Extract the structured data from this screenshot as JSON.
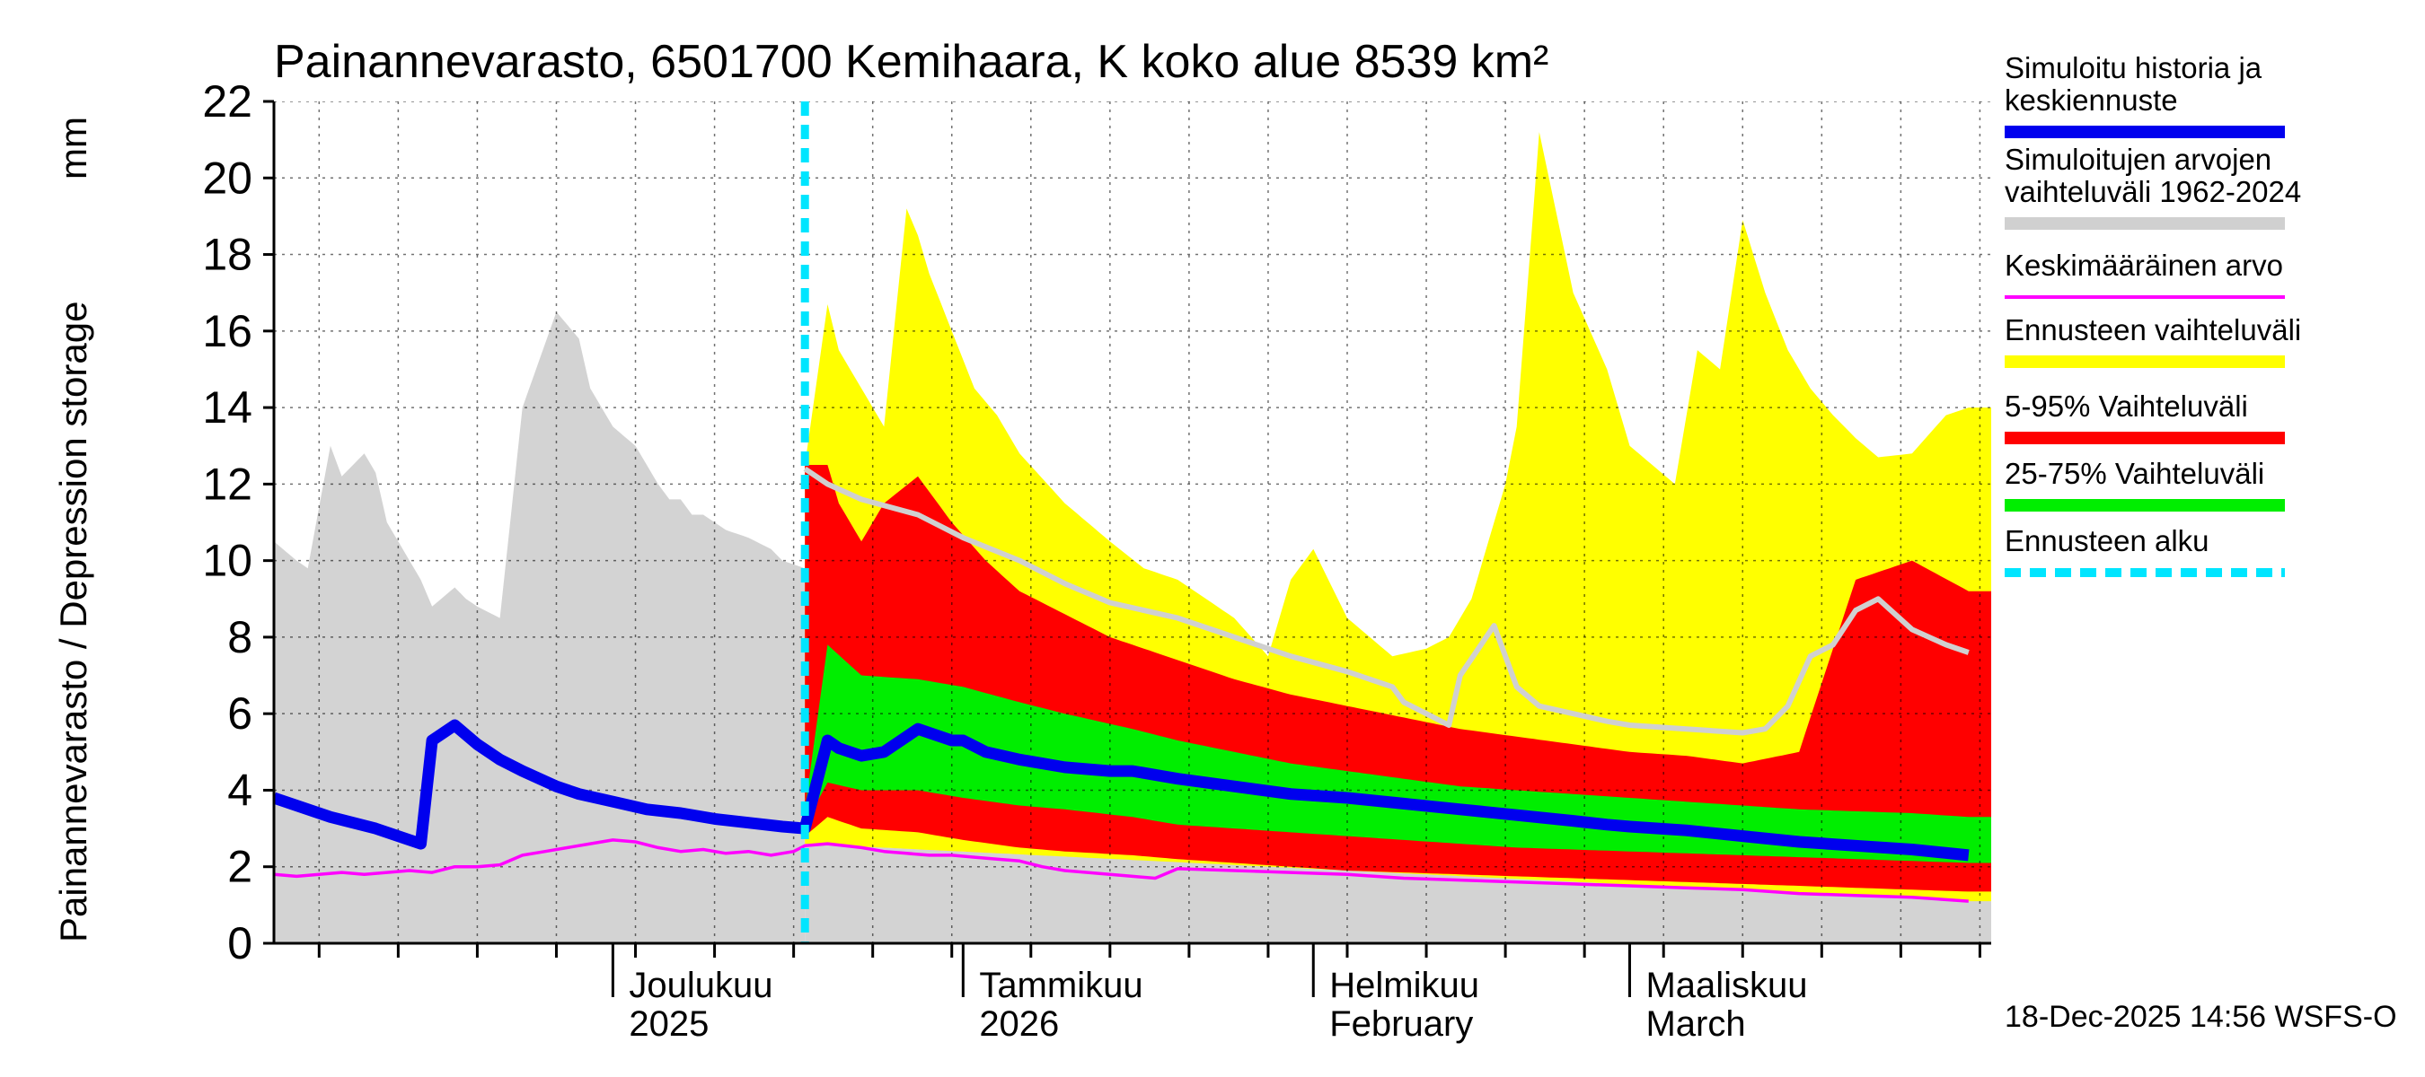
{
  "chart_data": {
    "type": "area",
    "title": "Painannevarasto, 6501700 Kemihaara, K koko alue 8539 km²",
    "ylabel": "Painannevarasto / Depression storage",
    "yunit": "mm",
    "ylim": [
      0,
      22
    ],
    "yticks": [
      0,
      2,
      4,
      6,
      8,
      10,
      12,
      14,
      16,
      18,
      20,
      22
    ],
    "x_start": "2025-11-01",
    "x_end": "2026-03-31",
    "forecast_start_day": 47,
    "footer": "18-Dec-2025 14:56 WSFS-O",
    "month_labels": [
      {
        "day": 30,
        "line1": "Joulukuu",
        "line2": "2025"
      },
      {
        "day": 61,
        "line1": "Tammikuu",
        "line2": "2026"
      },
      {
        "day": 92,
        "line1": "Helmikuu",
        "line2": "February"
      },
      {
        "day": 120,
        "line1": "Maaliskuu",
        "line2": "March"
      }
    ],
    "month_boundaries": [
      30,
      61,
      92,
      120
    ],
    "legend": [
      {
        "label_lines": [
          "Simuloitu historia ja",
          "keskiennuste"
        ],
        "color": "#0000ee",
        "style": "thick"
      },
      {
        "label_lines": [
          "Simuloitujen arvojen",
          "vaihteluväli 1962-2024"
        ],
        "color": "#d0d0d0",
        "style": "thick"
      },
      {
        "label_lines": [
          "Keskimääräinen arvo"
        ],
        "color": "#ff00ff",
        "style": "thin"
      },
      {
        "label_lines": [
          "Ennusteen vaihteluväli"
        ],
        "color": "#ffff00",
        "style": "thick"
      },
      {
        "label_lines": [
          "5-95% Vaihteluväli"
        ],
        "color": "#ff0000",
        "style": "thick"
      },
      {
        "label_lines": [
          "25-75% Vaihteluväli"
        ],
        "color": "#00ee00",
        "style": "thick"
      },
      {
        "label_lines": [
          "Ennusteen alku"
        ],
        "color": "#00e5ff",
        "style": "dashed"
      }
    ],
    "series": {
      "hist_range_upper": {
        "x": [
          0,
          2,
          3,
          5,
          6,
          8,
          9,
          10,
          11,
          12,
          13,
          14,
          16,
          17,
          18,
          20,
          22,
          25,
          27,
          28,
          30,
          32,
          33,
          34,
          35,
          36,
          37,
          38,
          40,
          42,
          44,
          45,
          46,
          47
        ],
        "y": [
          10.5,
          10,
          9.8,
          13,
          12.2,
          12.8,
          12.3,
          11,
          10.5,
          10,
          9.5,
          8.8,
          9.3,
          9,
          8.8,
          8.5,
          14,
          16.5,
          15.8,
          14.5,
          13.5,
          13,
          12.5,
          12,
          11.6,
          11.6,
          11.2,
          11.2,
          10.8,
          10.6,
          10.3,
          10,
          9.9,
          9.8
        ]
      },
      "hist_range_lower": {
        "x": [
          0,
          47
        ],
        "y": [
          0,
          0
        ]
      },
      "hist_mean_sim": {
        "x": [
          0,
          2,
          3,
          5,
          6,
          8,
          9,
          10,
          11,
          12,
          13,
          14,
          16,
          17,
          18,
          20,
          22,
          25,
          27,
          28,
          30,
          32,
          34,
          35,
          36,
          37,
          38,
          40,
          42,
          44,
          45,
          46,
          47
        ],
        "y": [
          10.5,
          10,
          9.8,
          13,
          12.2,
          12.8,
          12.3,
          11,
          10.5,
          10,
          9.5,
          8.8,
          9.3,
          9,
          8.8,
          8.5,
          14,
          16.5,
          15.8,
          14.5,
          13.5,
          13,
          12.6,
          12.4,
          12.2,
          11.9,
          11.6,
          11.4,
          11.2,
          11,
          10.7,
          10.4,
          10.2
        ]
      },
      "forecast_mean": {
        "x": [
          0,
          5,
          9,
          12,
          13,
          14,
          16,
          18,
          20,
          22,
          25,
          27,
          30,
          33,
          36,
          39,
          42,
          45,
          47,
          49,
          50,
          52,
          54,
          57,
          60,
          61,
          63,
          66,
          70,
          74,
          76,
          80,
          85,
          90,
          95,
          100,
          105,
          110,
          115,
          118,
          120,
          125,
          130,
          135,
          140,
          145,
          150
        ],
        "y": [
          3.8,
          3.3,
          3.0,
          2.7,
          2.6,
          5.3,
          5.7,
          5.2,
          4.8,
          4.5,
          4.1,
          3.9,
          3.7,
          3.5,
          3.4,
          3.25,
          3.15,
          3.05,
          3.0,
          5.3,
          5.1,
          4.9,
          5.0,
          5.6,
          5.3,
          5.3,
          5.0,
          4.8,
          4.6,
          4.5,
          4.5,
          4.3,
          4.1,
          3.9,
          3.8,
          3.65,
          3.5,
          3.35,
          3.2,
          3.1,
          3.05,
          2.95,
          2.8,
          2.65,
          2.55,
          2.45,
          2.3
        ]
      },
      "forecast_full_upper": {
        "x": [
          47,
          49,
          50,
          52,
          54,
          56,
          57,
          58,
          60,
          62,
          64,
          66,
          70,
          74,
          77,
          80,
          85,
          88,
          90,
          92,
          95,
          99,
          102,
          104,
          106,
          108,
          109,
          110,
          112,
          115,
          118,
          120,
          122,
          124,
          126,
          128,
          130,
          132,
          134,
          136,
          138,
          140,
          142,
          145,
          148,
          150
        ],
        "y": [
          12.5,
          16.7,
          15.5,
          14.5,
          13.5,
          19.2,
          18.5,
          17.5,
          16,
          14.5,
          13.8,
          12.8,
          11.5,
          10.5,
          9.8,
          9.5,
          8.5,
          7.5,
          9.5,
          10.3,
          8.5,
          7.5,
          7.7,
          8,
          9,
          11,
          12,
          13.5,
          21.2,
          17,
          15,
          13,
          12.5,
          12,
          15.5,
          15,
          18.9,
          17,
          15.5,
          14.5,
          13.8,
          13.2,
          12.7,
          12.8,
          13.8,
          14
        ]
      },
      "forecast_p95": {
        "x": [
          47,
          49,
          50,
          52,
          54,
          57,
          60,
          63,
          66,
          70,
          74,
          76,
          80,
          85,
          90,
          95,
          100,
          105,
          110,
          115,
          120,
          125,
          130,
          135,
          140,
          145,
          150
        ],
        "y": [
          12.5,
          12.5,
          11.5,
          10.5,
          11.5,
          12.2,
          11,
          10,
          9.2,
          8.6,
          8,
          7.8,
          7.4,
          6.9,
          6.5,
          6.2,
          5.9,
          5.6,
          5.4,
          5.2,
          5,
          4.9,
          4.7,
          5.0,
          9.5,
          10,
          9.2
        ]
      },
      "forecast_p75": {
        "x": [
          47,
          49,
          52,
          57,
          61,
          66,
          70,
          76,
          80,
          85,
          90,
          95,
          100,
          105,
          110,
          115,
          120,
          125,
          130,
          135,
          140,
          145,
          150
        ],
        "y": [
          3.5,
          7.8,
          7.0,
          6.9,
          6.7,
          6.3,
          6.0,
          5.6,
          5.3,
          5.0,
          4.7,
          4.5,
          4.3,
          4.1,
          4.0,
          3.9,
          3.8,
          3.7,
          3.6,
          3.5,
          3.45,
          3.4,
          3.3
        ]
      },
      "forecast_p25": {
        "x": [
          47,
          49,
          52,
          57,
          61,
          66,
          70,
          76,
          80,
          85,
          90,
          95,
          100,
          105,
          110,
          115,
          120,
          125,
          130,
          135,
          140,
          145,
          150
        ],
        "y": [
          3.1,
          4.2,
          4.0,
          4.0,
          3.8,
          3.6,
          3.5,
          3.3,
          3.1,
          3.0,
          2.9,
          2.8,
          2.7,
          2.6,
          2.5,
          2.45,
          2.4,
          2.35,
          2.3,
          2.25,
          2.2,
          2.15,
          2.1
        ]
      },
      "forecast_p5": {
        "x": [
          47,
          49,
          52,
          57,
          61,
          66,
          70,
          76,
          80,
          85,
          90,
          95,
          100,
          105,
          110,
          115,
          120,
          125,
          130,
          135,
          140,
          145,
          150
        ],
        "y": [
          2.8,
          3.3,
          3.0,
          2.9,
          2.7,
          2.5,
          2.4,
          2.3,
          2.2,
          2.1,
          2.0,
          1.9,
          1.85,
          1.8,
          1.75,
          1.7,
          1.65,
          1.6,
          1.55,
          1.5,
          1.45,
          1.4,
          1.35
        ]
      },
      "forecast_full_lower": {
        "x": [
          47,
          150
        ],
        "y": [
          2.6,
          1.1
        ]
      },
      "mean_value": {
        "x": [
          0,
          2,
          4,
          6,
          8,
          10,
          12,
          14,
          16,
          18,
          20,
          22,
          24,
          26,
          28,
          30,
          32,
          34,
          36,
          38,
          40,
          42,
          44,
          46,
          47,
          49,
          52,
          54,
          56,
          58,
          60,
          62,
          64,
          66,
          68,
          70,
          72,
          74,
          76,
          78,
          80,
          85,
          90,
          95,
          100,
          105,
          110,
          115,
          120,
          125,
          130,
          135,
          140,
          145,
          150
        ],
        "y": [
          1.8,
          1.75,
          1.8,
          1.85,
          1.8,
          1.85,
          1.9,
          1.85,
          2.0,
          2.0,
          2.05,
          2.3,
          2.4,
          2.5,
          2.6,
          2.7,
          2.65,
          2.5,
          2.4,
          2.45,
          2.35,
          2.4,
          2.3,
          2.4,
          2.55,
          2.6,
          2.5,
          2.4,
          2.35,
          2.3,
          2.3,
          2.25,
          2.2,
          2.15,
          2.0,
          1.9,
          1.85,
          1.8,
          1.75,
          1.7,
          1.95,
          1.9,
          1.85,
          1.8,
          1.7,
          1.65,
          1.6,
          1.55,
          1.5,
          1.45,
          1.4,
          1.3,
          1.25,
          1.2,
          1.1
        ]
      },
      "hist_dev_gray": {
        "x": [
          47,
          49,
          52,
          57,
          61,
          66,
          70,
          74,
          80,
          85,
          90,
          95,
          99,
          100,
          102,
          104,
          105,
          108,
          110,
          112,
          115,
          118,
          120,
          125,
          130,
          132,
          134,
          136,
          138,
          140,
          142,
          145,
          148,
          150
        ],
        "y": [
          12.4,
          12.0,
          11.6,
          11.2,
          10.6,
          10.0,
          9.4,
          8.9,
          8.5,
          8.0,
          7.5,
          7.1,
          6.7,
          6.3,
          6.0,
          5.7,
          7.0,
          8.3,
          6.7,
          6.2,
          6.0,
          5.8,
          5.7,
          5.6,
          5.5,
          5.6,
          6.2,
          7.5,
          7.8,
          8.7,
          9.0,
          8.2,
          7.8,
          7.6
        ]
      }
    }
  }
}
